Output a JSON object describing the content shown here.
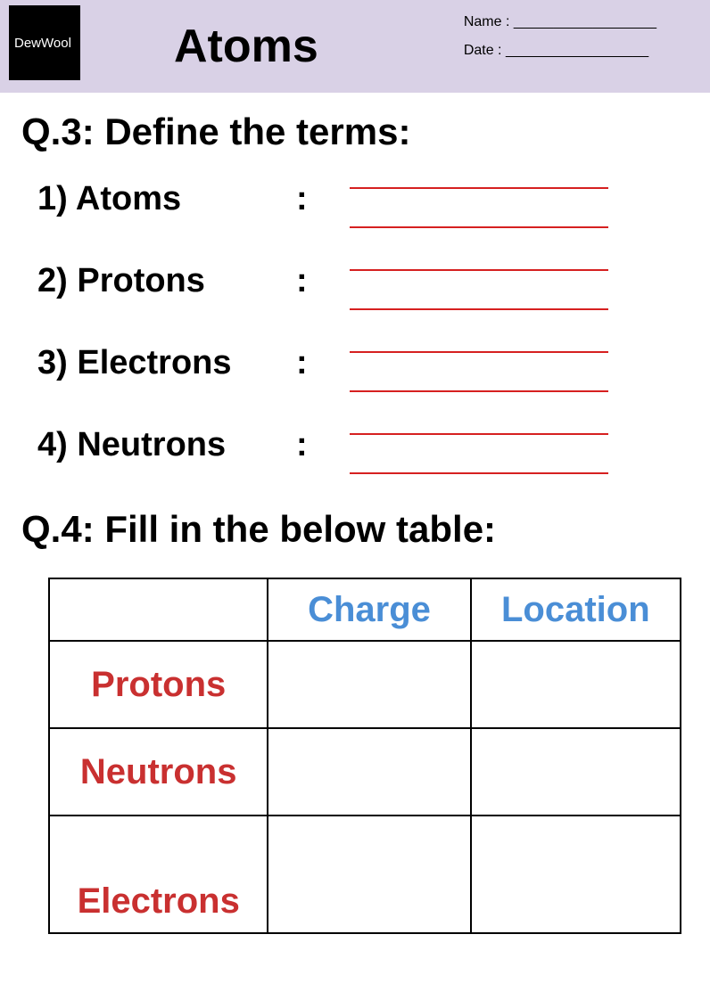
{
  "header": {
    "logo_text": "DewWool",
    "title": "Atoms",
    "name_label": "Name  : __________________",
    "date_label": "Date  : __________________"
  },
  "q3": {
    "heading": "Q.3: Define the terms:",
    "terms": [
      {
        "label": "1) Atoms"
      },
      {
        "label": "2) Protons"
      },
      {
        "label": "3) Electrons"
      },
      {
        "label": "4) Neutrons"
      }
    ],
    "answer_line_color": "#d62020"
  },
  "q4": {
    "heading": "Q.4: Fill in the below table:",
    "columns": [
      "",
      "Charge",
      "Location"
    ],
    "rows": [
      "Protons",
      "Neutrons",
      "Electrons"
    ],
    "header_text_color": "#4a8ed6",
    "row_label_color": "#c93030",
    "border_color": "#000000"
  },
  "colors": {
    "header_bg": "#d9d1e6",
    "page_bg": "#ffffff"
  }
}
